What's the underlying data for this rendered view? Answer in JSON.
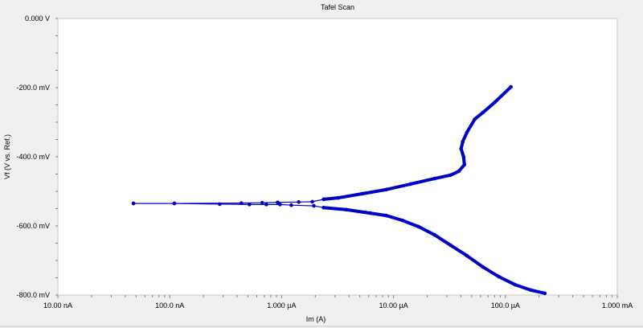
{
  "chart_data": {
    "type": "line",
    "title": "Tafel Scan",
    "xlabel": "Im (A)",
    "ylabel": "Vf (V vs. Ref.)",
    "x_scale": "log",
    "xlim": [
      1e-08,
      0.001
    ],
    "ylim": [
      -800,
      0
    ],
    "y_unit": "mV",
    "grid": false,
    "line_color": "#0000c8",
    "x_ticks": [
      {
        "value": 1e-08,
        "label": "10.00 nA"
      },
      {
        "value": 1e-07,
        "label": "100.0 nA"
      },
      {
        "value": 1e-06,
        "label": "1.000 µA"
      },
      {
        "value": 1e-05,
        "label": "10.00 µA"
      },
      {
        "value": 0.0001,
        "label": "100.0 µA"
      },
      {
        "value": 0.001,
        "label": "1.000 mA"
      }
    ],
    "y_ticks": [
      {
        "value": 0,
        "label": "0.000 V"
      },
      {
        "value": -200,
        "label": "-200.0 mV"
      },
      {
        "value": -400,
        "label": "-400.0 mV"
      },
      {
        "value": -600,
        "label": "-600.0 mV"
      },
      {
        "value": -800,
        "label": "-800.0 mV"
      }
    ],
    "series": [
      {
        "branch": "cathodic",
        "x": [
          0.000225,
          0.00017,
          0.000122,
          8.75e-05,
          6.3e-05,
          4.52e-05,
          3.24e-05,
          2.33e-05,
          1.67e-05,
          1.2e-05,
          8.6e-06,
          6.19e-06,
          3.77e-06,
          2.37e-06,
          1.94e-06,
          1.22e-06,
          9.67e-07,
          7.3e-07,
          5.15e-07,
          2.79e-07,
          1.1e-07,
          4.74e-08
        ],
        "y": [
          -795,
          -786,
          -770,
          -747,
          -719,
          -686,
          -656,
          -626,
          -602,
          -584,
          -570,
          -563,
          -553,
          -547,
          -542,
          -540,
          -538,
          -538,
          -538,
          -537,
          -535,
          -535
        ]
      },
      {
        "branch": "anodic",
        "x": [
          4.74e-08,
          1.1e-07,
          4.37e-07,
          6.71e-07,
          9.21e-07,
          1.42e-06,
          1.88e-06,
          2.37e-06,
          3.19e-06,
          5.24e-06,
          8.6e-06,
          1.42e-05,
          2.33e-05,
          3.24e-05,
          3.83e-05,
          4.3e-05,
          4.23e-05,
          4.02e-05,
          4.16e-05,
          4.52e-05,
          5.33e-05,
          6.3e-05,
          8.06e-05,
          0.000112
        ],
        "y": [
          -535,
          -535,
          -534,
          -533,
          -532,
          -531,
          -530,
          -523,
          -519,
          -507,
          -495,
          -479,
          -463,
          -453,
          -442,
          -423,
          -400,
          -377,
          -356,
          -330,
          -291,
          -272,
          -242,
          -198
        ]
      }
    ]
  }
}
